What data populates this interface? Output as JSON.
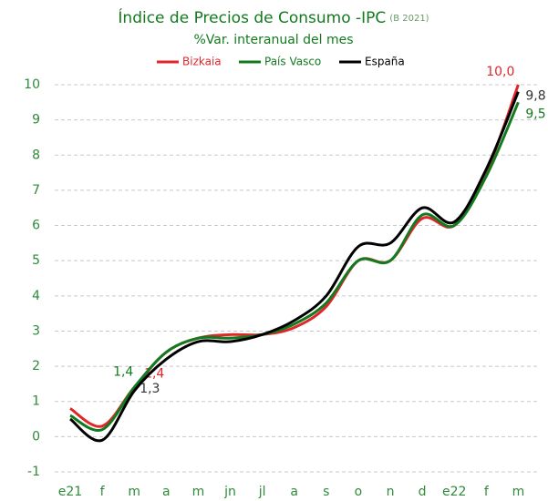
{
  "chart_data": {
    "type": "line",
    "title": "Índice de Precios de Consumo -IPC",
    "title_note": "(B 2021)",
    "subtitle": "%Var. interanual del mes",
    "categories": [
      "e21",
      "f",
      "m",
      "a",
      "m",
      "jn",
      "jl",
      "a",
      "s",
      "o",
      "n",
      "d",
      "e22",
      "f",
      "m"
    ],
    "series": [
      {
        "name": "Bizkaia",
        "color": "#e0262b",
        "values": [
          0.8,
          0.3,
          1.4,
          2.4,
          2.8,
          2.9,
          2.9,
          3.1,
          3.7,
          5.0,
          5.0,
          6.2,
          6.0,
          7.5,
          10.0
        ],
        "value_labels": [
          null,
          null,
          "1,4",
          null,
          null,
          null,
          null,
          null,
          null,
          null,
          null,
          null,
          null,
          null,
          "10,0"
        ]
      },
      {
        "name": "País Vasco",
        "color": "#137a1f",
        "values": [
          0.6,
          0.2,
          1.4,
          2.4,
          2.8,
          2.8,
          2.9,
          3.2,
          3.8,
          5.0,
          5.0,
          6.3,
          6.0,
          7.4,
          9.5
        ],
        "value_labels": [
          null,
          null,
          "1,4",
          null,
          null,
          null,
          null,
          null,
          null,
          null,
          null,
          null,
          null,
          null,
          "9,5"
        ]
      },
      {
        "name": "España",
        "color": "#000000",
        "values": [
          0.5,
          -0.1,
          1.3,
          2.2,
          2.7,
          2.7,
          2.9,
          3.3,
          4.0,
          5.4,
          5.5,
          6.5,
          6.1,
          7.6,
          9.8
        ],
        "value_labels": [
          null,
          null,
          "1,3",
          null,
          null,
          null,
          null,
          null,
          null,
          null,
          null,
          null,
          null,
          null,
          "9,8"
        ]
      }
    ],
    "ylim": [
      -1,
      10
    ],
    "yticks": [
      -1,
      0,
      1,
      2,
      3,
      4,
      5,
      6,
      7,
      8,
      9,
      10
    ],
    "grid": true,
    "legend": "top"
  }
}
